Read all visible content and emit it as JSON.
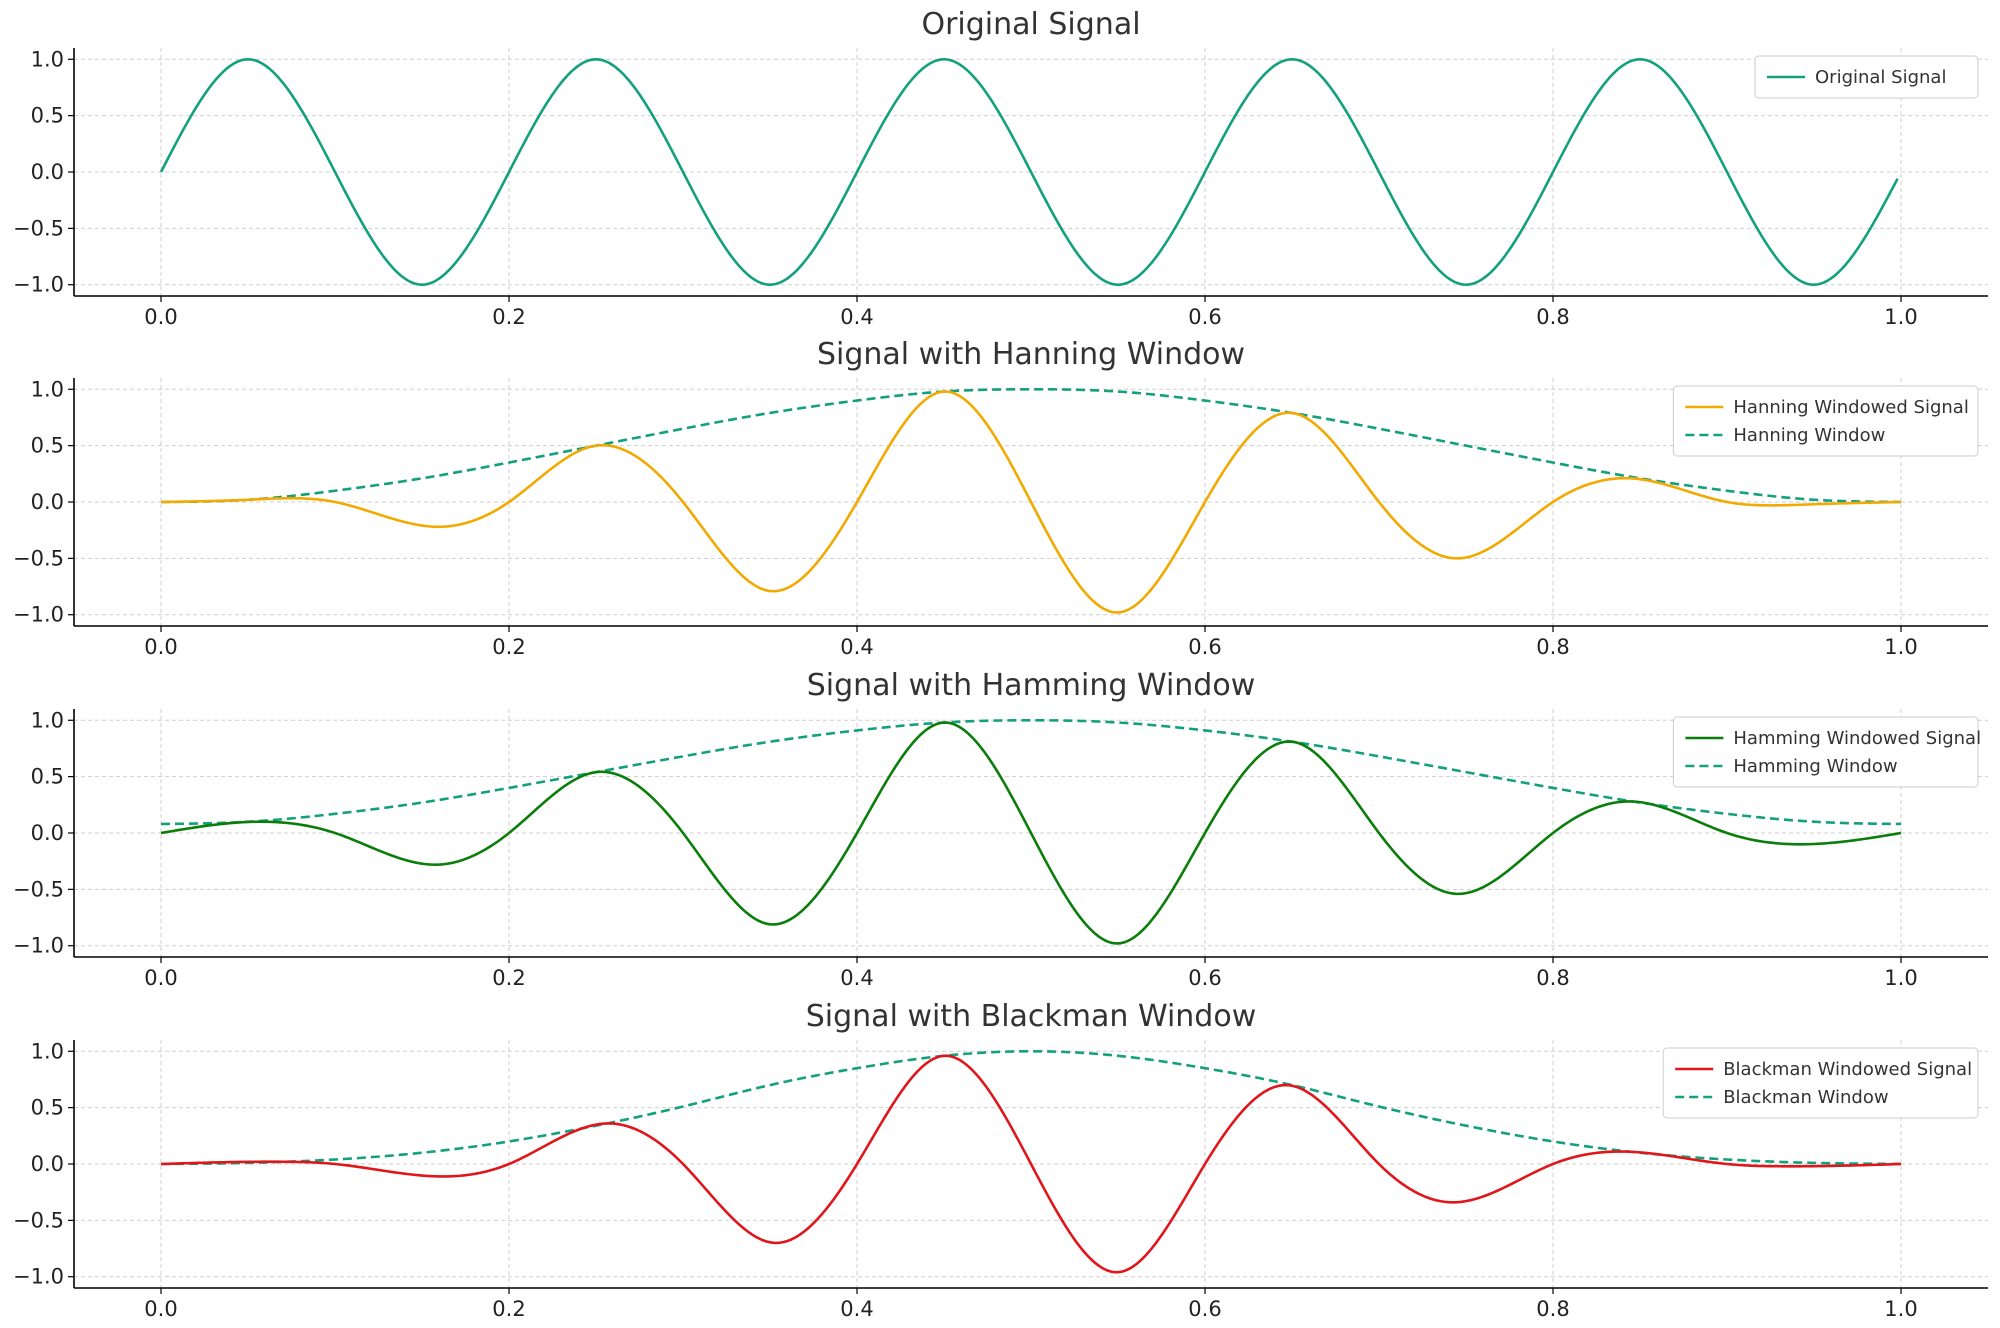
{
  "chart_data": [
    {
      "type": "line",
      "title": "Original Signal",
      "xlim": [
        -0.05,
        1.05
      ],
      "ylim": [
        -1.1,
        1.1
      ],
      "xticks": [
        0.0,
        0.2,
        0.4,
        0.6,
        0.8,
        1.0
      ],
      "xtick_labels": [
        "0.0",
        "0.2",
        "0.4",
        "0.6",
        "0.8",
        "1.0"
      ],
      "yticks": [
        1.0,
        0.5,
        0.0,
        -0.5,
        -1.0
      ],
      "ytick_labels": [
        "1.0",
        "0.5",
        "0.0",
        "−0.5",
        "−1.0"
      ],
      "grid": true,
      "legend_position": "top-right",
      "series": [
        {
          "name": "Original Signal",
          "color": "#13a07c",
          "style": "solid",
          "x": [
            0.0,
            0.05,
            0.1,
            0.15,
            0.2,
            0.25,
            0.3,
            0.35,
            0.4,
            0.45,
            0.5,
            0.55,
            0.6,
            0.65,
            0.7,
            0.75,
            0.8,
            0.85,
            0.9,
            0.95,
            0.998
          ],
          "y": [
            0.0,
            1.0,
            0.0,
            -1.0,
            0.0,
            1.0,
            0.0,
            -1.0,
            0.0,
            1.0,
            0.0,
            -1.0,
            0.0,
            1.0,
            0.0,
            -1.0,
            0.0,
            1.0,
            0.0,
            -1.0,
            -0.06
          ]
        }
      ]
    },
    {
      "type": "line",
      "title": "Signal with Hanning Window",
      "xlim": [
        -0.05,
        1.05
      ],
      "ylim": [
        -1.1,
        1.1
      ],
      "xticks": [
        0.0,
        0.2,
        0.4,
        0.6,
        0.8,
        1.0
      ],
      "xtick_labels": [
        "0.0",
        "0.2",
        "0.4",
        "0.6",
        "0.8",
        "1.0"
      ],
      "yticks": [
        1.0,
        0.5,
        0.0,
        -0.5,
        -1.0
      ],
      "ytick_labels": [
        "1.0",
        "0.5",
        "0.0",
        "−0.5",
        "−1.0"
      ],
      "grid": true,
      "legend_position": "top-right",
      "series": [
        {
          "name": "Hanning Windowed Signal",
          "color": "#f2a900",
          "style": "solid",
          "x": [
            0.0,
            0.05,
            0.1,
            0.16,
            0.2,
            0.25,
            0.3,
            0.35,
            0.4,
            0.45,
            0.5,
            0.55,
            0.6,
            0.65,
            0.7,
            0.745,
            0.8,
            0.845,
            0.9,
            0.925,
            0.95,
            1.0
          ],
          "y": [
            0.0,
            0.02,
            0.0,
            -0.22,
            0.0,
            0.5,
            0.0,
            -0.79,
            0.0,
            0.98,
            0.0,
            -0.98,
            0.0,
            0.79,
            0.0,
            -0.5,
            0.0,
            0.21,
            0.0,
            -0.03,
            -0.02,
            0.0
          ]
        },
        {
          "name": "Hanning Window",
          "color": "#13a07c",
          "style": "dashed",
          "x": [
            0.0,
            0.05,
            0.1,
            0.15,
            0.2,
            0.25,
            0.3,
            0.35,
            0.4,
            0.45,
            0.5,
            0.55,
            0.6,
            0.65,
            0.7,
            0.75,
            0.8,
            0.85,
            0.9,
            0.95,
            1.0
          ],
          "y": [
            0.0,
            0.02,
            0.1,
            0.21,
            0.35,
            0.5,
            0.65,
            0.79,
            0.9,
            0.98,
            1.0,
            0.98,
            0.9,
            0.79,
            0.65,
            0.5,
            0.35,
            0.21,
            0.1,
            0.02,
            0.0
          ]
        }
      ]
    },
    {
      "type": "line",
      "title": "Signal with Hamming Window",
      "xlim": [
        -0.05,
        1.05
      ],
      "ylim": [
        -1.1,
        1.1
      ],
      "xticks": [
        0.0,
        0.2,
        0.4,
        0.6,
        0.8,
        1.0
      ],
      "xtick_labels": [
        "0.0",
        "0.2",
        "0.4",
        "0.6",
        "0.8",
        "1.0"
      ],
      "yticks": [
        1.0,
        0.5,
        0.0,
        -0.5,
        -1.0
      ],
      "ytick_labels": [
        "1.0",
        "0.5",
        "0.0",
        "−0.5",
        "−1.0"
      ],
      "grid": true,
      "legend_position": "top-right",
      "series": [
        {
          "name": "Hamming Windowed Signal",
          "color": "#0a7d0a",
          "style": "solid",
          "x": [
            0.0,
            0.055,
            0.1,
            0.16,
            0.2,
            0.25,
            0.3,
            0.35,
            0.4,
            0.45,
            0.5,
            0.55,
            0.6,
            0.65,
            0.7,
            0.745,
            0.8,
            0.845,
            0.9,
            0.94,
            1.0
          ],
          "y": [
            0.0,
            0.1,
            0.0,
            -0.28,
            0.0,
            0.54,
            0.0,
            -0.81,
            0.0,
            0.98,
            0.0,
            -0.98,
            0.0,
            0.81,
            0.0,
            -0.54,
            0.0,
            0.28,
            0.0,
            -0.1,
            0.0
          ]
        },
        {
          "name": "Hamming Window",
          "color": "#13a07c",
          "style": "dashed",
          "x": [
            0.0,
            0.05,
            0.1,
            0.15,
            0.2,
            0.25,
            0.3,
            0.35,
            0.4,
            0.45,
            0.5,
            0.55,
            0.6,
            0.65,
            0.7,
            0.75,
            0.8,
            0.85,
            0.9,
            0.95,
            1.0
          ],
          "y": [
            0.08,
            0.1,
            0.17,
            0.27,
            0.4,
            0.54,
            0.68,
            0.81,
            0.91,
            0.98,
            1.0,
            0.98,
            0.91,
            0.81,
            0.68,
            0.54,
            0.4,
            0.27,
            0.17,
            0.1,
            0.08
          ]
        }
      ]
    },
    {
      "type": "line",
      "title": "Signal with Blackman Window",
      "xlim": [
        -0.05,
        1.05
      ],
      "ylim": [
        -1.1,
        1.1
      ],
      "xticks": [
        0.0,
        0.2,
        0.4,
        0.6,
        0.8,
        1.0
      ],
      "xtick_labels": [
        "0.0",
        "0.2",
        "0.4",
        "0.6",
        "0.8",
        "1.0"
      ],
      "yticks": [
        1.0,
        0.5,
        0.0,
        -0.5,
        -1.0
      ],
      "ytick_labels": [
        "1.0",
        "0.5",
        "0.0",
        "−0.5",
        "−1.0"
      ],
      "grid": true,
      "legend_position": "top-right",
      "series": [
        {
          "name": "Blackman Windowed Signal",
          "color": "#e0161a",
          "style": "solid",
          "x": [
            0.0,
            0.07,
            0.1,
            0.165,
            0.2,
            0.258,
            0.3,
            0.353,
            0.4,
            0.45,
            0.5,
            0.55,
            0.6,
            0.647,
            0.7,
            0.742,
            0.8,
            0.835,
            0.9,
            0.93,
            1.0
          ],
          "y": [
            0.0,
            0.02,
            0.0,
            -0.11,
            0.0,
            0.36,
            0.0,
            -0.7,
            0.0,
            0.96,
            0.0,
            -0.96,
            0.0,
            0.7,
            0.0,
            -0.34,
            0.0,
            0.11,
            0.0,
            -0.02,
            0.0
          ]
        },
        {
          "name": "Blackman Window",
          "color": "#13a07c",
          "style": "dashed",
          "x": [
            0.0,
            0.05,
            0.1,
            0.15,
            0.2,
            0.25,
            0.3,
            0.35,
            0.4,
            0.45,
            0.5,
            0.55,
            0.6,
            0.65,
            0.7,
            0.75,
            0.8,
            0.85,
            0.9,
            0.95,
            1.0
          ],
          "y": [
            0.0,
            0.01,
            0.04,
            0.1,
            0.2,
            0.34,
            0.51,
            0.7,
            0.85,
            0.96,
            1.0,
            0.96,
            0.85,
            0.7,
            0.51,
            0.34,
            0.2,
            0.1,
            0.04,
            0.01,
            0.0
          ]
        }
      ]
    }
  ]
}
